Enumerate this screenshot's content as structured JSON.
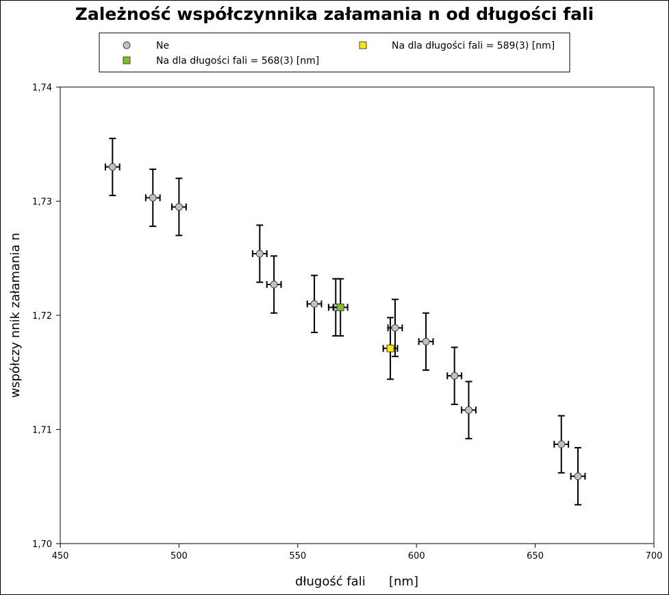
{
  "chart_data": {
    "type": "scatter",
    "title": "Zależność współczynnika załamania n od długości fali",
    "xlabel": "długość fali      [nm]",
    "ylabel": "współczy nnik  załamania n",
    "xlim": [
      450,
      700
    ],
    "ylim": [
      1.7,
      1.74
    ],
    "x_ticks": [
      450,
      500,
      550,
      600,
      650,
      700
    ],
    "x_tick_labels": [
      "450",
      "500",
      "550",
      "600",
      "650",
      "700"
    ],
    "y_ticks": [
      1.7,
      1.71,
      1.72,
      1.73,
      1.74
    ],
    "y_tick_labels": [
      "1,70",
      "1,71",
      "1,72",
      "1,73",
      "1,74"
    ],
    "grid": false,
    "legend_position": "top",
    "series": [
      {
        "name": "Ne",
        "marker": "circle",
        "color": "#c0c0c0",
        "x": [
          472,
          489,
          500,
          534,
          540,
          557,
          566,
          591,
          604,
          616,
          622,
          661,
          668
        ],
        "y": [
          1.733,
          1.7303,
          1.7295,
          1.7254,
          1.7227,
          1.721,
          1.7207,
          1.7189,
          1.7177,
          1.7147,
          1.7117,
          1.7087,
          1.7059
        ],
        "x_err": [
          3,
          3,
          3,
          3,
          3,
          3,
          3,
          3,
          3,
          3,
          3,
          3,
          3
        ],
        "y_err": [
          0.0025,
          0.0025,
          0.0025,
          0.0025,
          0.0025,
          0.0025,
          0.0025,
          0.0025,
          0.0025,
          0.0025,
          0.0025,
          0.0025,
          0.0025
        ]
      },
      {
        "name": "Na dla długości fali = 568(3) [nm]",
        "marker": "square",
        "color": "#7ec11f",
        "x": [
          568
        ],
        "y": [
          1.7207
        ],
        "x_err": [
          3
        ],
        "y_err": [
          0.0025
        ]
      },
      {
        "name": "Na dla długości fali = 589(3) [nm]",
        "marker": "square",
        "color": "#ffe600",
        "x": [
          589
        ],
        "y": [
          1.7171
        ],
        "x_err": [
          3
        ],
        "y_err": [
          0.0027
        ]
      }
    ]
  }
}
